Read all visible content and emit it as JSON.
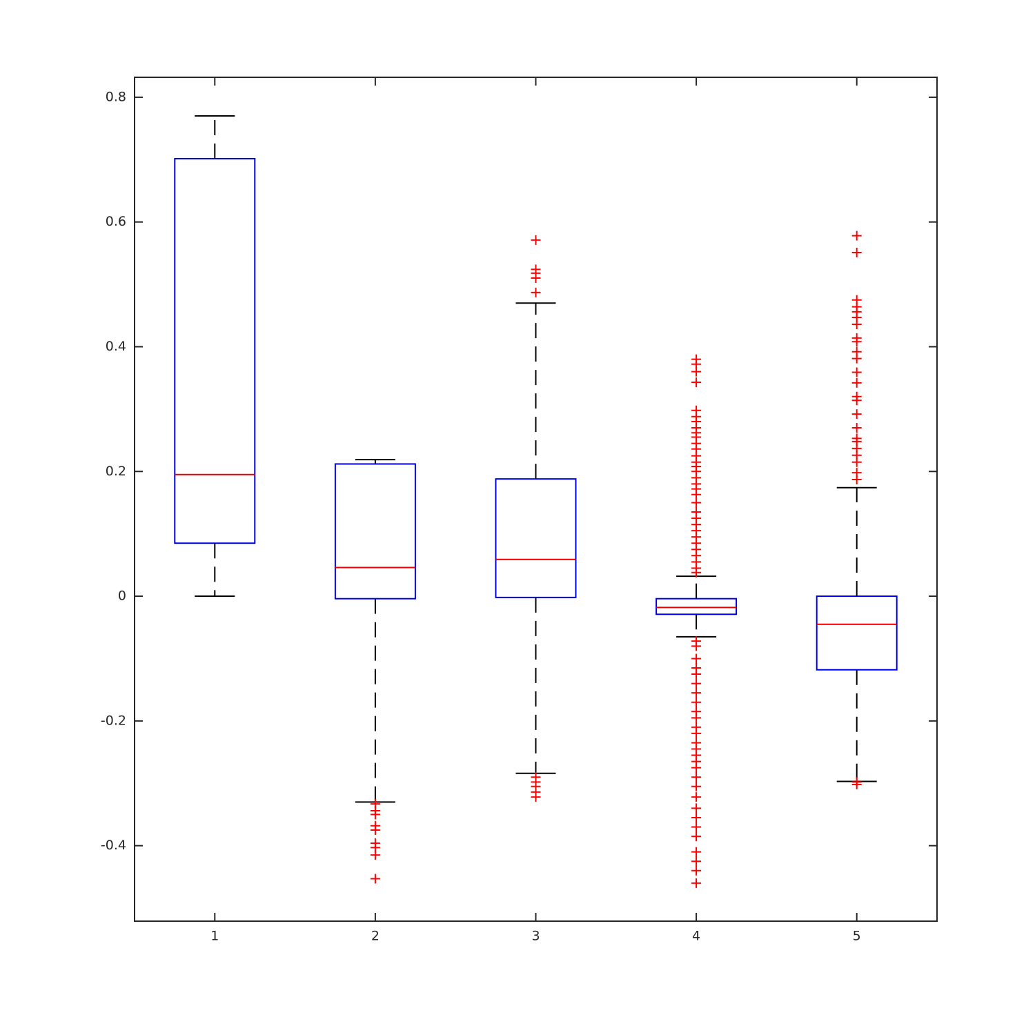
{
  "chart_data": {
    "type": "box",
    "categories": [
      "1",
      "2",
      "3",
      "4",
      "5"
    ],
    "xlim": [
      0.5,
      5.5
    ],
    "ylim": [
      -0.521,
      0.832
    ],
    "yticks": [
      -0.4,
      -0.2,
      0,
      0.2,
      0.4,
      0.6,
      0.8
    ],
    "box_color": "#0000e6",
    "median_color": "#e60000",
    "whisker_color": "#000000",
    "outlier_color": "#ff0000",
    "boxes": [
      {
        "whisker_low": 0,
        "q1": 0.085,
        "median": 0.195,
        "q3": 0.7015,
        "whisker_high": 0.77,
        "outliers": []
      },
      {
        "whisker_low": -0.33,
        "q1": -0.004,
        "median": 0.046,
        "q3": 0.212,
        "whisker_high": 0.219,
        "outliers": [
          -0.333,
          -0.344,
          -0.35,
          -0.368,
          -0.375,
          -0.396,
          -0.403,
          -0.415,
          -0.453
        ]
      },
      {
        "whisker_low": -0.284,
        "q1": -0.002,
        "median": 0.059,
        "q3": 0.188,
        "whisker_high": 0.47,
        "outliers": [
          0.571,
          0.524,
          0.518,
          0.51,
          0.487,
          -0.29,
          -0.298,
          -0.305,
          -0.314,
          -0.322
        ]
      },
      {
        "whisker_low": -0.065,
        "q1": -0.029,
        "median": -0.018,
        "q3": -0.004,
        "whisker_high": 0.032,
        "outliers": [
          0.38,
          0.372,
          0.36,
          0.343,
          0.298,
          0.288,
          0.28,
          0.27,
          0.262,
          0.255,
          0.245,
          0.236,
          0.225,
          0.215,
          0.208,
          0.2,
          0.19,
          0.18,
          0.172,
          0.163,
          0.15,
          0.135,
          0.125,
          0.115,
          0.105,
          0.095,
          0.085,
          0.075,
          0.065,
          0.055,
          0.045,
          0.038,
          -0.072,
          -0.08,
          -0.1,
          -0.115,
          -0.125,
          -0.14,
          -0.155,
          -0.17,
          -0.185,
          -0.195,
          -0.21,
          -0.22,
          -0.235,
          -0.245,
          -0.255,
          -0.265,
          -0.275,
          -0.29,
          -0.305,
          -0.322,
          -0.34,
          -0.355,
          -0.37,
          -0.385,
          -0.41,
          -0.425,
          -0.44,
          -0.46
        ]
      },
      {
        "whisker_low": -0.297,
        "q1": -0.118,
        "median": -0.045,
        "q3": 0,
        "whisker_high": 0.174,
        "outliers": [
          0.578,
          0.551,
          0.475,
          0.464,
          0.456,
          0.447,
          0.436,
          0.414,
          0.408,
          0.392,
          0.381,
          0.359,
          0.342,
          0.32,
          0.314,
          0.292,
          0.27,
          0.253,
          0.248,
          0.237,
          0.226,
          0.215,
          0.198,
          0.187,
          -0.298,
          -0.302
        ]
      }
    ]
  }
}
